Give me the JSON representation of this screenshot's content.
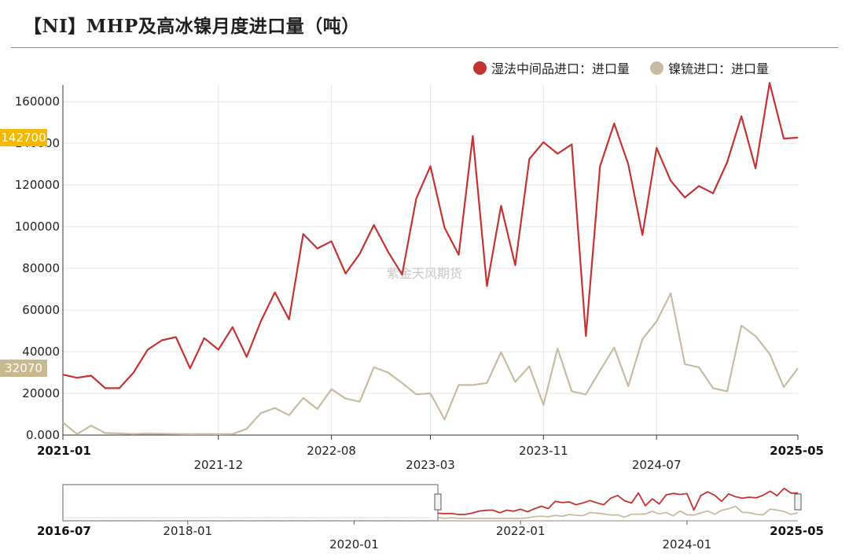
{
  "title": "【NI】MHP及高冰镍月度进口量（吨）",
  "watermark": "紫金天风期货",
  "colors": {
    "series1": "#c53232",
    "series2": "#c9bba2",
    "grid": "#e6e6e6",
    "axis": "#333333",
    "badge1": "#f5b800",
    "badge2": "#c9b98e"
  },
  "chart_data": {
    "type": "line",
    "ylim": [
      0,
      168000
    ],
    "yticks": [
      0,
      20000,
      40000,
      60000,
      80000,
      100000,
      120000,
      140000,
      160000
    ],
    "ytick_labels": [
      "0.000",
      "20000",
      "40000",
      "60000",
      "80000",
      "100000",
      "120000",
      "140000",
      "160000"
    ],
    "x_start": "2021-01",
    "x_end": "2025-05",
    "x_tick_labels": [
      "2021-01",
      "2021-12",
      "2022-08",
      "2023-03",
      "2023-11",
      "2024-07",
      "2025-05"
    ],
    "legend_position": "top-right",
    "grid": true,
    "series": [
      {
        "name": "湿法中间品进口：进口量",
        "latest_label": "142700",
        "values": [
          29000,
          27500,
          28500,
          22500,
          22500,
          30000,
          41000,
          45500,
          47000,
          32000,
          46500,
          41000,
          51800,
          37500,
          54500,
          68500,
          55500,
          96500,
          89500,
          93000,
          77500,
          87000,
          100800,
          88000,
          77000,
          113500,
          129000,
          99500,
          86500,
          143500,
          71500,
          110000,
          81500,
          132500,
          140500,
          135000,
          139500,
          47500,
          129000,
          149500,
          130000,
          96000,
          137800,
          122000,
          114000,
          119500,
          116000,
          131000,
          153000,
          128000,
          169000,
          142300,
          142700
        ]
      },
      {
        "name": "镍锍进口：进口量",
        "latest_label": "32070",
        "values": [
          6000,
          500,
          4500,
          1000,
          800,
          500,
          700,
          600,
          500,
          400,
          500,
          400,
          500,
          3000,
          10500,
          13000,
          9500,
          17800,
          12500,
          22000,
          17500,
          16000,
          32500,
          30000,
          25000,
          19500,
          20000,
          7500,
          24000,
          24000,
          25000,
          39800,
          25500,
          33000,
          14500,
          41500,
          21000,
          19500,
          31000,
          42000,
          23500,
          46000,
          54500,
          68000,
          34000,
          32500,
          22500,
          21000,
          52500,
          47500,
          39000,
          23000,
          32070
        ]
      }
    ]
  },
  "navigator": {
    "start_label": "2016-07",
    "end_label": "2025-05",
    "tick_labels": [
      "2018-01",
      "2020-01",
      "2022-01",
      "2024-01"
    ]
  }
}
